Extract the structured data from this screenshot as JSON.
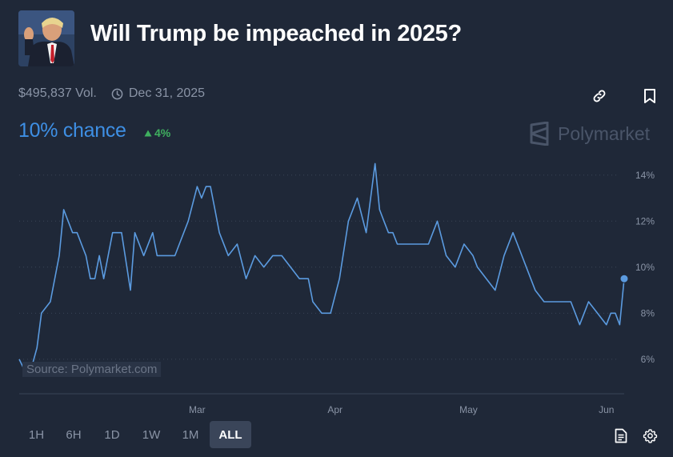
{
  "market": {
    "title": "Will Trump be impeached in 2025?",
    "volume": "$495,837 Vol.",
    "end_date": "Dec 31, 2025",
    "chance": "10% chance",
    "change": "4%",
    "brand": "Polymarket",
    "source": "Source: Polymarket.com"
  },
  "icons": {
    "clock": "clock-icon",
    "link": "link-icon",
    "bookmark": "bookmark-icon",
    "up": "triangle-up-icon",
    "brand": "polymarket-logo-icon",
    "doc": "document-icon",
    "settings": "gear-icon"
  },
  "colors": {
    "background": "#1f2838",
    "line": "#5b9be0",
    "chance": "#3e8fe4",
    "positive": "#3fb05f",
    "grid": "#3a4456",
    "muted": "#8a94a6"
  },
  "time_ranges": [
    "1H",
    "6H",
    "1D",
    "1W",
    "1M",
    "ALL"
  ],
  "active_range": "ALL",
  "chart_data": {
    "type": "line",
    "x_tick_labels": [
      "Mar",
      "Apr",
      "May",
      "Jun"
    ],
    "y_tick_labels": [
      "6%",
      "8%",
      "10%",
      "12%",
      "14%"
    ],
    "y_ticks": [
      6,
      8,
      10,
      12,
      14
    ],
    "ylim": [
      4.5,
      15
    ],
    "xlim": [
      "2025-01-20",
      "2025-06-05"
    ],
    "grid": "horizontal dotted",
    "series": [
      {
        "x": [
          "2025-01-20",
          "2025-01-21",
          "2025-01-23",
          "2025-01-24",
          "2025-01-25",
          "2025-01-27",
          "2025-01-29",
          "2025-01-30",
          "2025-02-01",
          "2025-02-02",
          "2025-02-03",
          "2025-02-04",
          "2025-02-05",
          "2025-02-06",
          "2025-02-07",
          "2025-02-08",
          "2025-02-10",
          "2025-02-12",
          "2025-02-14",
          "2025-02-15",
          "2025-02-17",
          "2025-02-19",
          "2025-02-20",
          "2025-02-22",
          "2025-02-24",
          "2025-02-25",
          "2025-02-27",
          "2025-03-01",
          "2025-03-02",
          "2025-03-03",
          "2025-03-04",
          "2025-03-05",
          "2025-03-06",
          "2025-03-08",
          "2025-03-10",
          "2025-03-12",
          "2025-03-14",
          "2025-03-16",
          "2025-03-18",
          "2025-03-20",
          "2025-03-22",
          "2025-03-24",
          "2025-03-26",
          "2025-03-27",
          "2025-03-29",
          "2025-03-31",
          "2025-04-02",
          "2025-04-04",
          "2025-04-06",
          "2025-04-08",
          "2025-04-10",
          "2025-04-11",
          "2025-04-12",
          "2025-04-13",
          "2025-04-14",
          "2025-04-15",
          "2025-04-16",
          "2025-04-18",
          "2025-04-20",
          "2025-04-22",
          "2025-04-24",
          "2025-04-26",
          "2025-04-28",
          "2025-04-30",
          "2025-05-02",
          "2025-05-03",
          "2025-05-05",
          "2025-05-07",
          "2025-05-09",
          "2025-05-11",
          "2025-05-12",
          "2025-05-14",
          "2025-05-16",
          "2025-05-18",
          "2025-05-20",
          "2025-05-22",
          "2025-05-24",
          "2025-05-26",
          "2025-05-28",
          "2025-05-30",
          "2025-06-01",
          "2025-06-02",
          "2025-06-03",
          "2025-06-04",
          "2025-06-05"
        ],
        "y": [
          6.0,
          5.6,
          5.8,
          6.5,
          8.0,
          8.5,
          10.5,
          12.5,
          11.5,
          11.5,
          11.0,
          10.5,
          9.5,
          9.5,
          10.5,
          9.5,
          11.5,
          11.5,
          9.0,
          11.5,
          10.5,
          11.5,
          10.5,
          10.5,
          10.5,
          11.0,
          12.0,
          13.5,
          13.0,
          13.5,
          13.5,
          12.5,
          11.5,
          10.5,
          11.0,
          9.5,
          10.5,
          10.0,
          10.5,
          10.5,
          10.0,
          9.5,
          9.5,
          8.5,
          8.0,
          8.0,
          9.5,
          12.0,
          13.0,
          11.5,
          14.5,
          12.5,
          12.0,
          11.5,
          11.5,
          11.0,
          11.0,
          11.0,
          11.0,
          11.0,
          12.0,
          10.5,
          10.0,
          11.0,
          10.5,
          10.0,
          9.5,
          9.0,
          10.5,
          11.5,
          11.0,
          10.0,
          9.0,
          8.5,
          8.5,
          8.5,
          8.5,
          7.5,
          8.5,
          8.0,
          7.5,
          8.0,
          8.0,
          7.5,
          9.5
        ]
      }
    ]
  }
}
